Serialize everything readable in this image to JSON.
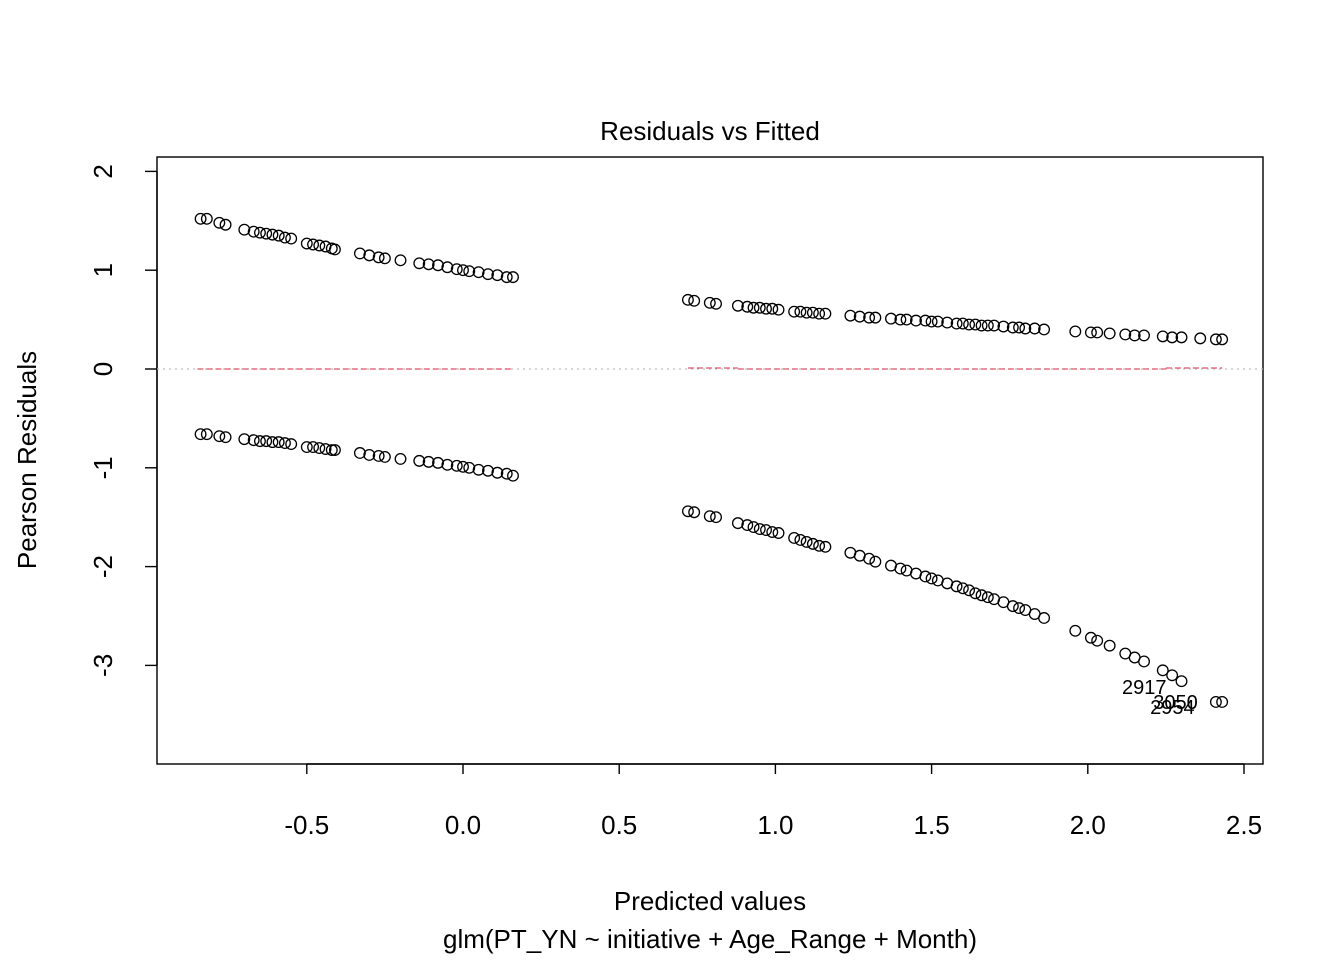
{
  "chart_data": {
    "type": "scatter",
    "title": "Residuals vs Fitted",
    "xlabel": "Predicted values",
    "subtitle": "glm(PT_YN ~ initiative + Age_Range + Month)",
    "ylabel": "Pearson Residuals",
    "xlim": [
      -0.9,
      2.55
    ],
    "ylim": [
      -3.9,
      2.15
    ],
    "x_ticks": [
      -0.5,
      0.0,
      0.5,
      1.0,
      1.5,
      2.0,
      2.5
    ],
    "x_tick_labels": [
      "-0.5",
      "0.0",
      "0.5",
      "1.0",
      "1.5",
      "2.0",
      "2.5"
    ],
    "y_ticks": [
      -3,
      -2,
      -1,
      0,
      1,
      2
    ],
    "y_tick_labels": [
      "-3",
      "-2",
      "-1",
      "0",
      "1",
      "2"
    ],
    "grid": false,
    "reference_line": {
      "y": 0,
      "style": "dotted",
      "color": "#BEBEBE"
    },
    "smooth_line_color": "#DF536B",
    "series": [
      {
        "x": [
          -0.84,
          -0.82,
          -0.78,
          -0.76,
          -0.7,
          -0.67,
          -0.65,
          -0.63,
          -0.61,
          -0.59,
          -0.57,
          -0.55,
          -0.5,
          -0.48,
          -0.46,
          -0.44,
          -0.42,
          -0.41,
          -0.33,
          -0.3,
          -0.27,
          -0.25,
          -0.2,
          -0.14,
          -0.11,
          -0.08,
          -0.05,
          -0.02,
          0.0,
          0.02,
          0.05,
          0.08,
          0.11,
          0.14,
          0.16
        ],
        "y": [
          1.52,
          1.52,
          1.48,
          1.46,
          1.41,
          1.39,
          1.38,
          1.37,
          1.36,
          1.35,
          1.33,
          1.32,
          1.27,
          1.26,
          1.25,
          1.24,
          1.22,
          1.21,
          1.17,
          1.15,
          1.13,
          1.12,
          1.1,
          1.07,
          1.06,
          1.05,
          1.03,
          1.01,
          1.0,
          0.99,
          0.98,
          0.96,
          0.95,
          0.93,
          0.93
        ]
      },
      {
        "x": [
          -0.84,
          -0.82,
          -0.78,
          -0.76,
          -0.7,
          -0.67,
          -0.65,
          -0.63,
          -0.61,
          -0.59,
          -0.57,
          -0.55,
          -0.5,
          -0.48,
          -0.46,
          -0.44,
          -0.42,
          -0.41,
          -0.33,
          -0.3,
          -0.27,
          -0.25,
          -0.2,
          -0.14,
          -0.11,
          -0.08,
          -0.05,
          -0.02,
          0.0,
          0.02,
          0.05,
          0.08,
          0.11,
          0.14,
          0.16
        ],
        "y": [
          -0.66,
          -0.66,
          -0.68,
          -0.69,
          -0.71,
          -0.72,
          -0.73,
          -0.73,
          -0.74,
          -0.74,
          -0.75,
          -0.76,
          -0.79,
          -0.79,
          -0.8,
          -0.81,
          -0.82,
          -0.82,
          -0.85,
          -0.87,
          -0.88,
          -0.89,
          -0.91,
          -0.93,
          -0.94,
          -0.95,
          -0.97,
          -0.98,
          -0.99,
          -1.0,
          -1.02,
          -1.03,
          -1.05,
          -1.06,
          -1.08
        ]
      },
      {
        "x": [
          0.72,
          0.74,
          0.79,
          0.81,
          0.88,
          0.91,
          0.93,
          0.95,
          0.97,
          0.99,
          1.01,
          1.06,
          1.08,
          1.1,
          1.12,
          1.14,
          1.16,
          1.24,
          1.27,
          1.3,
          1.32,
          1.37,
          1.4,
          1.42,
          1.45,
          1.48,
          1.5,
          1.52,
          1.55,
          1.58,
          1.6,
          1.62,
          1.64,
          1.66,
          1.68,
          1.7,
          1.73,
          1.76,
          1.78,
          1.8,
          1.83,
          1.86,
          1.96,
          2.01,
          2.03,
          2.07,
          2.12,
          2.15,
          2.18,
          2.24,
          2.27,
          2.3,
          2.36,
          2.41,
          2.43
        ],
        "y": [
          0.7,
          0.69,
          0.67,
          0.66,
          0.64,
          0.63,
          0.62,
          0.62,
          0.61,
          0.61,
          0.6,
          0.58,
          0.58,
          0.57,
          0.57,
          0.56,
          0.56,
          0.54,
          0.53,
          0.52,
          0.52,
          0.51,
          0.5,
          0.5,
          0.49,
          0.49,
          0.48,
          0.48,
          0.47,
          0.46,
          0.46,
          0.45,
          0.45,
          0.44,
          0.44,
          0.44,
          0.43,
          0.42,
          0.42,
          0.41,
          0.41,
          0.4,
          0.38,
          0.37,
          0.37,
          0.36,
          0.35,
          0.34,
          0.34,
          0.33,
          0.32,
          0.32,
          0.31,
          0.3,
          0.3
        ]
      },
      {
        "x": [
          0.72,
          0.74,
          0.79,
          0.81,
          0.88,
          0.91,
          0.93,
          0.95,
          0.97,
          0.99,
          1.01,
          1.06,
          1.08,
          1.1,
          1.12,
          1.14,
          1.16,
          1.24,
          1.27,
          1.3,
          1.32,
          1.37,
          1.4,
          1.42,
          1.45,
          1.48,
          1.5,
          1.52,
          1.55,
          1.58,
          1.6,
          1.62,
          1.64,
          1.66,
          1.68,
          1.7,
          1.73,
          1.76,
          1.78,
          1.8,
          1.83,
          1.86,
          1.96,
          2.01,
          2.03,
          2.07,
          2.12,
          2.15,
          2.18,
          2.24,
          2.27,
          2.3,
          2.41,
          2.43
        ],
        "y": [
          -1.44,
          -1.45,
          -1.49,
          -1.5,
          -1.56,
          -1.58,
          -1.6,
          -1.62,
          -1.63,
          -1.65,
          -1.66,
          -1.71,
          -1.73,
          -1.75,
          -1.77,
          -1.79,
          -1.8,
          -1.86,
          -1.89,
          -1.92,
          -1.95,
          -1.99,
          -2.02,
          -2.04,
          -2.07,
          -2.1,
          -2.12,
          -2.14,
          -2.17,
          -2.2,
          -2.22,
          -2.24,
          -2.27,
          -2.29,
          -2.31,
          -2.33,
          -2.36,
          -2.4,
          -2.42,
          -2.44,
          -2.48,
          -2.52,
          -2.65,
          -2.72,
          -2.75,
          -2.8,
          -2.88,
          -2.92,
          -2.96,
          -3.05,
          -3.1,
          -3.16,
          -3.37,
          -3.37
        ]
      }
    ],
    "smooth_segments": [
      {
        "x": [
          -0.85,
          -0.5
        ],
        "y": [
          0.0,
          0.0
        ]
      },
      {
        "x": [
          -0.5,
          0.16
        ],
        "y": [
          0.0,
          0.0
        ]
      },
      {
        "x": [
          0.72,
          0.88
        ],
        "y": [
          0.01,
          0.01
        ]
      },
      {
        "x": [
          0.88,
          2.25
        ],
        "y": [
          0.0,
          0.0
        ]
      },
      {
        "x": [
          2.25,
          2.43
        ],
        "y": [
          0.01,
          0.01
        ]
      }
    ],
    "annotations": [
      {
        "text": "2917",
        "x": 2.2,
        "y": -3.22
      },
      {
        "text": "3050",
        "x": 2.3,
        "y": -3.37
      },
      {
        "text": "2954",
        "x": 2.29,
        "y": -3.42
      }
    ]
  }
}
